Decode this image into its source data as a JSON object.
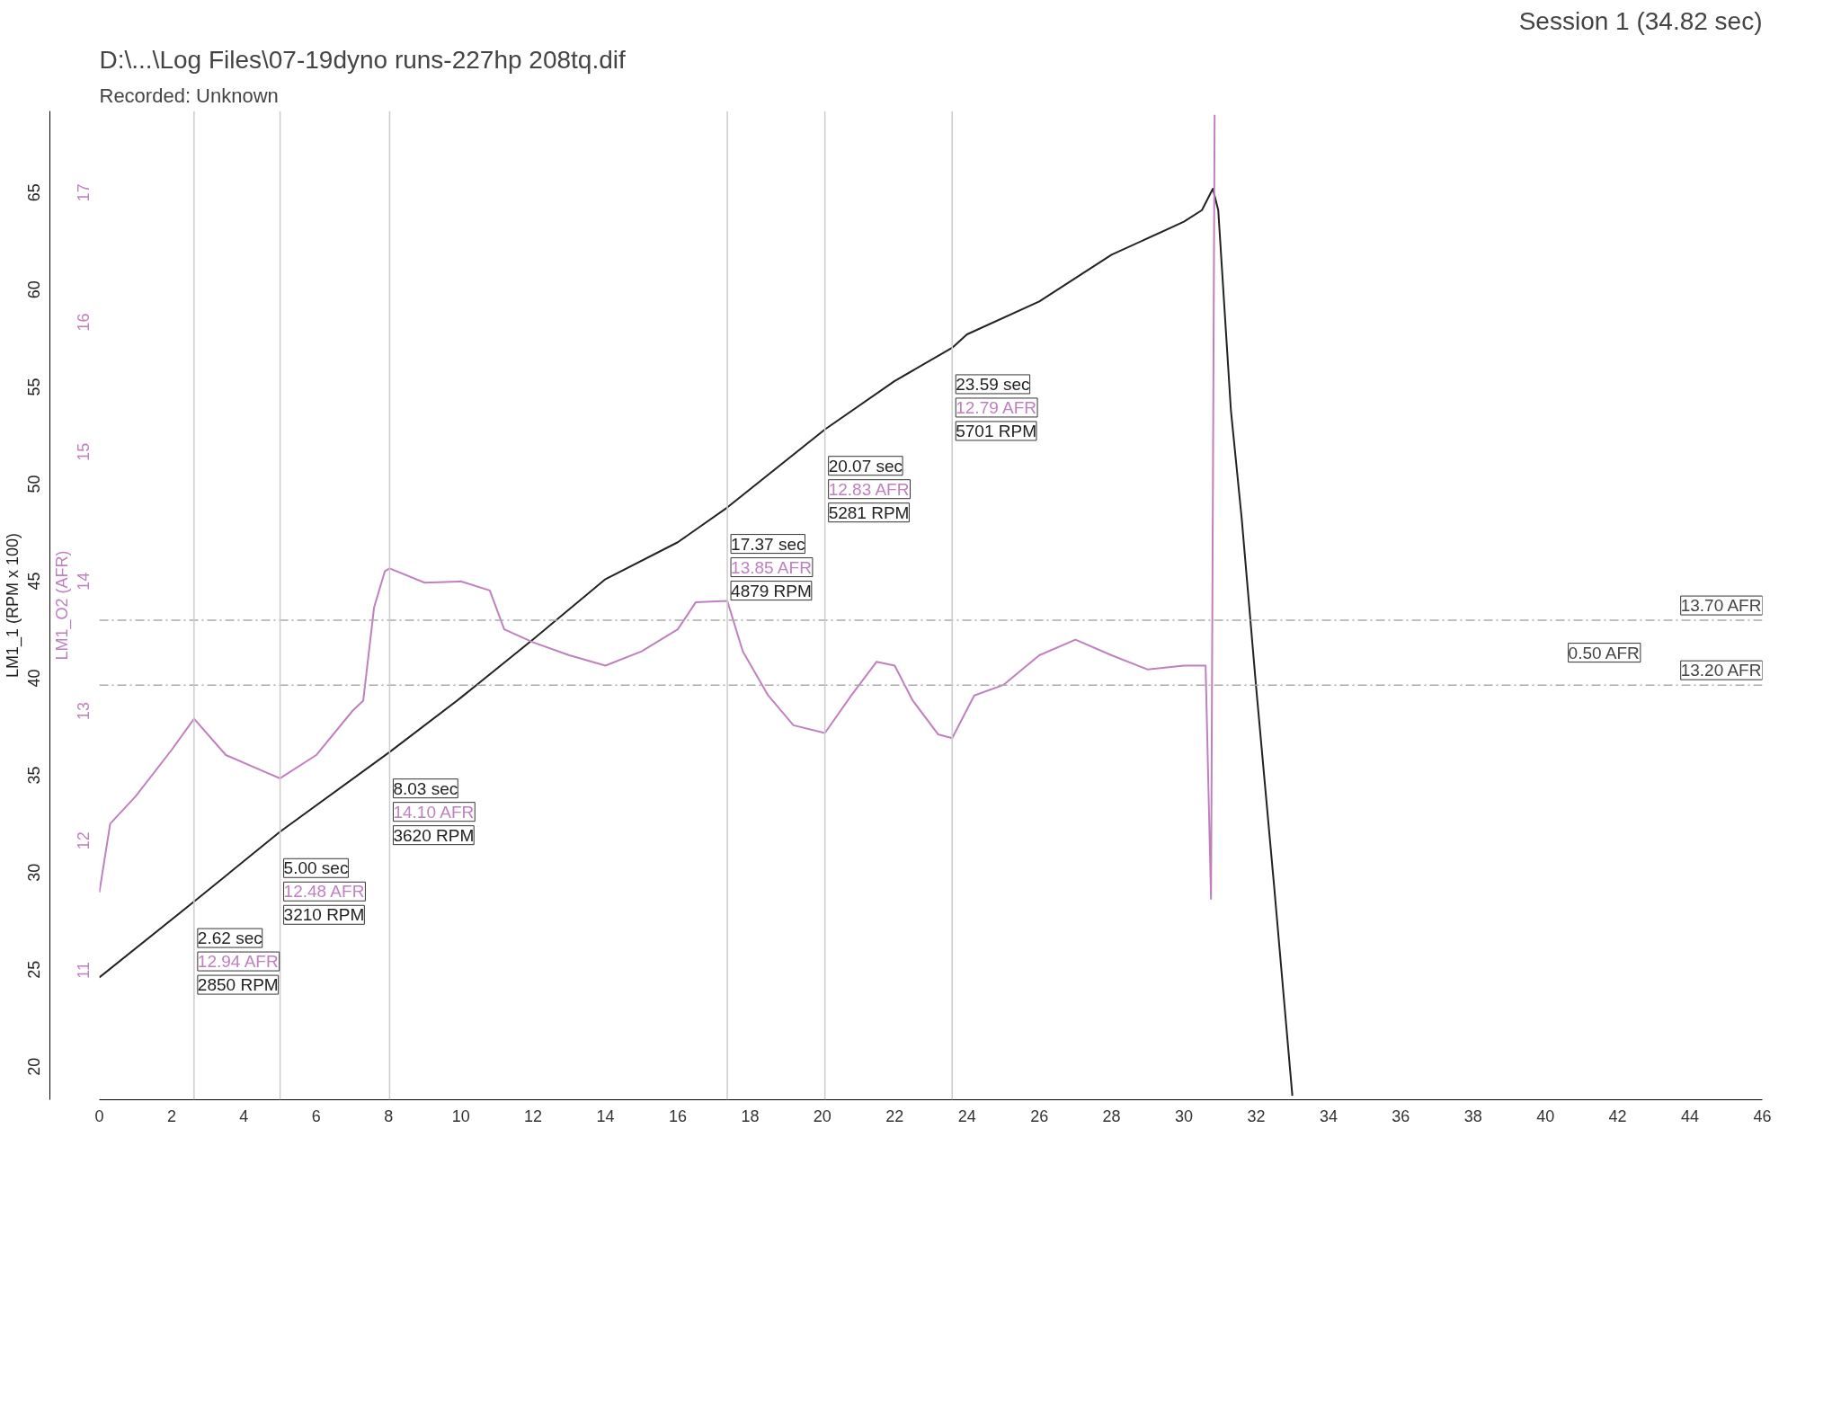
{
  "chart_data": {
    "type": "line",
    "title": "D:\\...\\Log Files\\07-19dyno runs-227hp 208tq.dif",
    "subtitle": "Recorded: Unknown",
    "ylabel": "LM1_1 (RPM x 100)",
    "y2label": "LM1_O2 (AFR)",
    "xlim": [
      0,
      46
    ],
    "xticks": [
      0,
      2,
      4,
      6,
      8,
      10,
      12,
      14,
      16,
      18,
      20,
      22,
      24,
      26,
      28,
      30,
      32,
      34,
      36,
      38,
      40,
      42,
      44,
      46
    ],
    "ylim": [
      18.3,
      69.2
    ],
    "yticks": [
      20,
      25,
      30,
      35,
      40,
      45,
      50,
      55,
      60,
      65
    ],
    "y2lim": [
      10.0,
      17.63
    ],
    "y2ticks": [
      11,
      12,
      13,
      14,
      15,
      16,
      17
    ],
    "series": [
      {
        "color": "#222222",
        "x": [
          0,
          2.62,
          5.0,
          8.03,
          10,
          12,
          14,
          16,
          17.37,
          20.07,
          22,
          23.59,
          24,
          26,
          28,
          30,
          30.5,
          30.8,
          30.95,
          31.3,
          31.6,
          32.0,
          32.5,
          33.0
        ],
        "values": [
          24.6,
          28.5,
          32.1,
          36.2,
          39.0,
          42.0,
          45.1,
          47.0,
          48.79,
          52.81,
          55.3,
          57.01,
          57.7,
          59.4,
          61.8,
          63.5,
          64.1,
          65.2,
          64.1,
          53.8,
          48.2,
          39.5,
          29.2,
          18.5
        ]
      },
      {
        "color": "#c080c0",
        "axis": "y2",
        "x": [
          0,
          0.3,
          1,
          2,
          2.62,
          3.5,
          4.5,
          5.0,
          6,
          7,
          7.3,
          7.6,
          7.9,
          8.03,
          9,
          10,
          10.8,
          11.2,
          12,
          13,
          14,
          15,
          16,
          16.5,
          17.37,
          17.8,
          18.5,
          19.2,
          20.07,
          20.8,
          21.5,
          22,
          22.5,
          23.2,
          23.59,
          24.2,
          25,
          26,
          27,
          28,
          29,
          30,
          30.6,
          30.75,
          30.85
        ],
        "values": [
          11.6,
          12.13,
          12.34,
          12.7,
          12.94,
          12.66,
          12.54,
          12.48,
          12.66,
          13.0,
          13.08,
          13.8,
          14.08,
          14.1,
          13.99,
          14.0,
          13.93,
          13.63,
          13.53,
          13.43,
          13.35,
          13.46,
          13.63,
          13.84,
          13.85,
          13.46,
          13.12,
          12.89,
          12.83,
          13.12,
          13.38,
          13.35,
          13.08,
          12.82,
          12.79,
          13.12,
          13.2,
          13.43,
          13.55,
          13.43,
          13.32,
          13.35,
          13.35,
          11.55,
          17.6
        ]
      }
    ],
    "ref_lines": [
      {
        "axis": "y2",
        "value": 13.7,
        "label": "13.70 AFR",
        "color": "#aaaaaa",
        "line_style": "dashed"
      },
      {
        "axis": "y2",
        "value": 13.2,
        "label": "13.20 AFR",
        "color": "#aaaaaa",
        "line_style": "dashed"
      },
      {
        "axis": "x",
        "value": 2.62,
        "label": "2.62 sec",
        "color": "#cccccc"
      },
      {
        "axis": "x",
        "value": 5.0,
        "label": "5.00 sec",
        "color": "#cccccc"
      },
      {
        "axis": "x",
        "value": 8.03,
        "label": "8.03 sec",
        "color": "#cccccc"
      },
      {
        "axis": "x",
        "value": 17.37,
        "label": "17.37 sec",
        "color": "#cccccc"
      },
      {
        "axis": "x",
        "value": 20.07,
        "label": "20.07 sec",
        "color": "#cccccc"
      },
      {
        "axis": "x",
        "value": 23.59,
        "label": "23.59 sec",
        "color": "#cccccc"
      }
    ],
    "annotations": [
      "Session 1 (34.82 sec)",
      "0.50 AFR",
      "12.94 AFR",
      "2850 RPM",
      "12.48 AFR",
      "3210 RPM",
      "14.10 AFR",
      "3620 RPM",
      "13.85 AFR",
      "4879 RPM",
      "12.83 AFR",
      "5281 RPM",
      "12.79 AFR",
      "5701 RPM"
    ]
  }
}
